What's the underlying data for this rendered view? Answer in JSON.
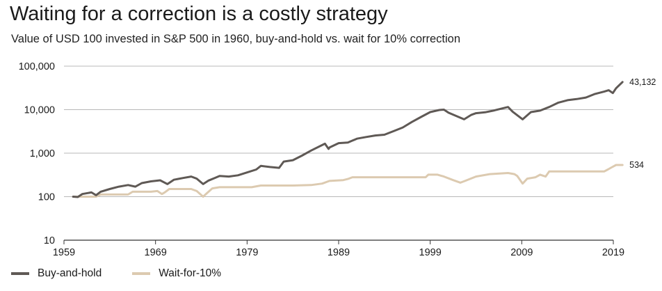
{
  "colors": {
    "buy_and_hold": "#5f5955",
    "wait_for_10": "#dccab0",
    "grid": "#b8b8b8",
    "axis": "#333333"
  },
  "chart_data": {
    "type": "line",
    "title": "Waiting for a correction is a costly strategy",
    "subtitle": "Value of USD 100 invested in S&P 500 in 1960, buy-and-hold vs. wait for 10% correction",
    "xlabel": "",
    "ylabel": "",
    "y_scale": "log",
    "ylim": [
      10,
      100000
    ],
    "xlim": [
      1959,
      2019
    ],
    "y_ticks": [
      10,
      100,
      1000,
      10000,
      100000
    ],
    "y_tick_labels": [
      "10",
      "100",
      "1,000",
      "10,000",
      "100,000"
    ],
    "x_ticks": [
      1959,
      1969,
      1979,
      1989,
      1999,
      2009,
      2019
    ],
    "x_tick_labels": [
      "1959",
      "1969",
      "1979",
      "1989",
      "1999",
      "2009",
      "2019"
    ],
    "grid": true,
    "legend_position": "bottom-left",
    "series": [
      {
        "name": "Buy-and-hold",
        "end_label": "43,132",
        "x": [
          1960,
          1960.5,
          1961,
          1962,
          1962.5,
          1963,
          1964,
          1965,
          1966,
          1966.8,
          1967.5,
          1968.5,
          1969.5,
          1970.3,
          1971,
          1972,
          1972.9,
          1973.5,
          1974.2,
          1974.8,
          1975.5,
          1976,
          1977,
          1978,
          1979,
          1980,
          1980.5,
          1981.5,
          1982.5,
          1983,
          1984,
          1985,
          1986,
          1987.5,
          1987.9,
          1988,
          1989,
          1990,
          1991,
          1992,
          1993,
          1994,
          1995,
          1996,
          1997,
          1998,
          1999,
          2000,
          2000.5,
          2001,
          2002.7,
          2003.5,
          2004,
          2005,
          2006,
          2007.5,
          2008,
          2009.1,
          2010,
          2011,
          2012,
          2013,
          2014,
          2015,
          2016,
          2017,
          2018,
          2018.5,
          2018.95,
          2019.3,
          2020
        ],
        "values": [
          100,
          98,
          115,
          125,
          108,
          130,
          150,
          170,
          185,
          170,
          205,
          225,
          238,
          195,
          245,
          268,
          290,
          260,
          195,
          235,
          270,
          300,
          290,
          310,
          360,
          420,
          510,
          480,
          460,
          640,
          690,
          880,
          1150,
          1650,
          1250,
          1350,
          1700,
          1750,
          2150,
          2350,
          2550,
          2650,
          3200,
          3900,
          5200,
          6800,
          8800,
          9800,
          10000,
          8500,
          6000,
          7600,
          8300,
          8700,
          9600,
          11500,
          9000,
          6000,
          8800,
          9500,
          11500,
          14500,
          16500,
          17500,
          19000,
          23000,
          26000,
          28000,
          24000,
          31000,
          43132
        ]
      },
      {
        "name": "Wait-for-10%",
        "end_label": "534",
        "x": [
          1960,
          1962.5,
          1963,
          1966,
          1966.5,
          1968.5,
          1969.2,
          1969.7,
          1970,
          1970.5,
          1972.9,
          1973.5,
          1974.2,
          1974.6,
          1975.2,
          1976,
          1979.5,
          1980.5,
          1984,
          1986,
          1987.2,
          1988,
          1989.5,
          1990,
          1990.5,
          1998.5,
          1998.8,
          1999.8,
          2000.5,
          2001.5,
          2002.3,
          2002.8,
          2004,
          2005.5,
          2007.5,
          2008.2,
          2008.5,
          2009.1,
          2009.6,
          2010.5,
          2011,
          2011.6,
          2012,
          2018,
          2018.4,
          2018.8,
          2019.3,
          2020
        ],
        "values": [
          100,
          100,
          112,
          112,
          130,
          130,
          135,
          115,
          125,
          150,
          150,
          135,
          100,
          120,
          155,
          165,
          165,
          180,
          180,
          185,
          200,
          230,
          240,
          255,
          280,
          280,
          320,
          320,
          290,
          240,
          210,
          230,
          290,
          330,
          350,
          330,
          300,
          200,
          260,
          280,
          320,
          290,
          380,
          380,
          420,
          470,
          534,
          534
        ]
      }
    ]
  }
}
